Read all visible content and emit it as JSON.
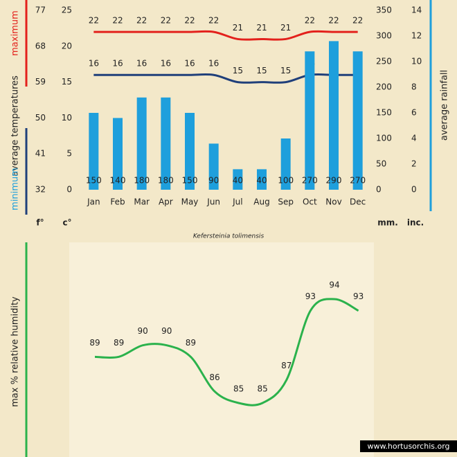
{
  "chart_data": [
    {
      "type": "bar",
      "caption": "Kefersteinia tolimensis",
      "categories": [
        "Jan",
        "Feb",
        "Mar",
        "Apr",
        "May",
        "Jun",
        "Jul",
        "Aug",
        "Sep",
        "Oct",
        "Nov",
        "Dec"
      ],
      "ylabel": "average temperatures",
      "yunit": "c°",
      "ylim": [
        0,
        25
      ],
      "yticks": [
        0,
        5,
        10,
        15,
        20,
        25
      ],
      "yfunit": "f°",
      "yflim": [
        32,
        77
      ],
      "yfticks": [
        32,
        41,
        50,
        59,
        68,
        77
      ],
      "y2unit": "mm.",
      "y2lim": [
        0,
        350
      ],
      "y2ticks": [
        0,
        50,
        100,
        150,
        200,
        250,
        300,
        350
      ],
      "y2inunit": "inc.",
      "y2inlim": [
        0,
        14
      ],
      "y2inticks": [
        0,
        2,
        4,
        6,
        8,
        10,
        12,
        14
      ],
      "series": [
        {
          "name": "maximum",
          "type": "line",
          "color": "#e3211c",
          "values": [
            22,
            22,
            22,
            22,
            22,
            22,
            21,
            21,
            21,
            22,
            22,
            22
          ]
        },
        {
          "name": "minimum",
          "type": "line",
          "color": "#1f3f7a",
          "values": [
            16,
            16,
            16,
            16,
            16,
            16,
            15,
            15,
            15,
            16,
            16,
            16
          ]
        },
        {
          "name": "average rainfall",
          "type": "bar",
          "axis": "y2",
          "color": "#1e9fdc",
          "values": [
            150,
            140,
            180,
            180,
            150,
            90,
            40,
            40,
            100,
            270,
            290,
            270
          ]
        }
      ]
    },
    {
      "type": "line",
      "ylabel": "max % relative humidity",
      "color": "#2bb24c",
      "values": [
        89,
        89,
        90,
        90,
        89,
        86,
        85,
        85,
        87,
        93,
        94,
        93
      ]
    }
  ],
  "watermark": "www.hortusorchis.org"
}
